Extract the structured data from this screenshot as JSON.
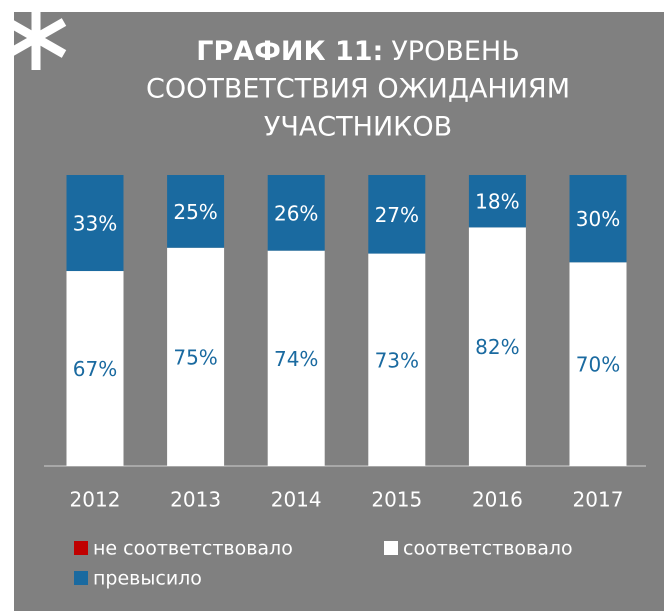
{
  "chart_data": {
    "type": "stacked_bar",
    "title_prefix": "ГРАФИК 11:",
    "title": [
      "УРОВЕНЬ",
      "СООТВЕТСТВИЯ ОЖИДАНИЯМ",
      "УЧАСТНИКОВ"
    ],
    "categories": [
      "2012",
      "2013",
      "2014",
      "2015",
      "2016",
      "2017"
    ],
    "ylim": [
      0,
      100
    ],
    "series": [
      {
        "name": "не соответствовало",
        "color": "#c00000",
        "values": [
          0,
          0,
          0,
          0,
          0,
          0
        ]
      },
      {
        "name": "соответствовало",
        "color": "#ffffff",
        "values": [
          67,
          75,
          74,
          73,
          82,
          70
        ],
        "value_labels": [
          "67%",
          "75%",
          "74%",
          "73%",
          "82%",
          "70%"
        ]
      },
      {
        "name": "превысило",
        "color": "#1a6aa0",
        "values": [
          33,
          25,
          26,
          27,
          18,
          30
        ],
        "value_labels": [
          "33%",
          "25%",
          "26%",
          "27%",
          "18%",
          "30%"
        ]
      }
    ]
  }
}
